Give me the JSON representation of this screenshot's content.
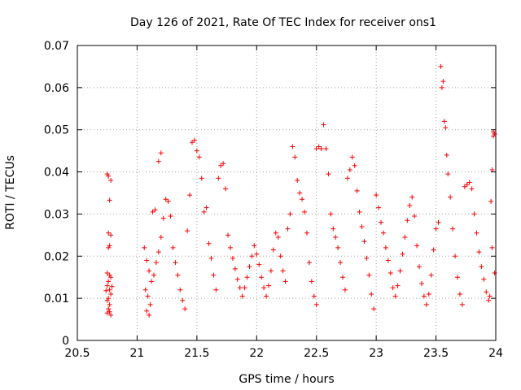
{
  "chart_data": {
    "type": "scatter",
    "title": "Day 126 of 2021, Rate Of TEC Index for receiver ons1",
    "xlabel": "GPS time / hours",
    "ylabel": "ROTI / TECUs",
    "xlim": [
      20.5,
      24
    ],
    "ylim": [
      0,
      0.07
    ],
    "grid": true,
    "marker": "+",
    "color": "#ff0000",
    "x_ticks": [
      20.5,
      21,
      21.5,
      22,
      22.5,
      23,
      23.5,
      24
    ],
    "x_tick_labels": [
      "20.5",
      "21",
      "21.5",
      "22",
      "22.5",
      "23",
      "23.5",
      "24"
    ],
    "y_ticks": [
      0,
      0.01,
      0.02,
      0.03,
      0.04,
      0.05,
      0.06,
      0.07
    ],
    "y_tick_labels": [
      "0",
      "0.01",
      "0.02",
      "0.03",
      "0.04",
      "0.05",
      "0.06",
      "0.07"
    ],
    "series": [
      {
        "name": "ROTI",
        "points": [
          [
            20.75,
            0.0395
          ],
          [
            20.76,
            0.039
          ],
          [
            20.78,
            0.038
          ],
          [
            20.77,
            0.0333
          ],
          [
            20.76,
            0.0255
          ],
          [
            20.78,
            0.025
          ],
          [
            20.77,
            0.0225
          ],
          [
            20.76,
            0.022
          ],
          [
            20.75,
            0.016
          ],
          [
            20.77,
            0.0155
          ],
          [
            20.78,
            0.015
          ],
          [
            20.76,
            0.014
          ],
          [
            20.75,
            0.013
          ],
          [
            20.77,
            0.012
          ],
          [
            20.78,
            0.011
          ],
          [
            20.76,
            0.01
          ],
          [
            20.75,
            0.0095
          ],
          [
            20.77,
            0.0085
          ],
          [
            20.76,
            0.0075
          ],
          [
            20.75,
            0.0065
          ],
          [
            20.78,
            0.006
          ],
          [
            20.77,
            0.0068
          ],
          [
            20.79,
            0.0128
          ],
          [
            20.74,
            0.0118
          ],
          [
            21.06,
            0.022
          ],
          [
            21.08,
            0.019
          ],
          [
            21.1,
            0.0165
          ],
          [
            21.12,
            0.014
          ],
          [
            21.07,
            0.012
          ],
          [
            21.09,
            0.0105
          ],
          [
            21.11,
            0.0085
          ],
          [
            21.08,
            0.007
          ],
          [
            21.1,
            0.006
          ],
          [
            21.14,
            0.0155
          ],
          [
            21.16,
            0.0185
          ],
          [
            21.18,
            0.021
          ],
          [
            21.2,
            0.0245
          ],
          [
            21.22,
            0.029
          ],
          [
            21.18,
            0.0425
          ],
          [
            21.2,
            0.0445
          ],
          [
            21.15,
            0.031
          ],
          [
            21.13,
            0.0305
          ],
          [
            21.24,
            0.0335
          ],
          [
            21.26,
            0.033
          ],
          [
            21.28,
            0.0295
          ],
          [
            21.3,
            0.022
          ],
          [
            21.32,
            0.0185
          ],
          [
            21.34,
            0.0155
          ],
          [
            21.36,
            0.012
          ],
          [
            21.38,
            0.0095
          ],
          [
            21.4,
            0.0075
          ],
          [
            21.42,
            0.026
          ],
          [
            21.44,
            0.0345
          ],
          [
            21.46,
            0.047
          ],
          [
            21.48,
            0.0475
          ],
          [
            21.5,
            0.045
          ],
          [
            21.52,
            0.0435
          ],
          [
            21.54,
            0.0385
          ],
          [
            21.56,
            0.0305
          ],
          [
            21.58,
            0.0315
          ],
          [
            21.6,
            0.023
          ],
          [
            21.62,
            0.0195
          ],
          [
            21.64,
            0.0155
          ],
          [
            21.66,
            0.012
          ],
          [
            21.68,
            0.0385
          ],
          [
            21.7,
            0.0415
          ],
          [
            21.72,
            0.042
          ],
          [
            21.74,
            0.036
          ],
          [
            21.76,
            0.025
          ],
          [
            21.78,
            0.022
          ],
          [
            21.8,
            0.0195
          ],
          [
            21.82,
            0.017
          ],
          [
            21.84,
            0.0145
          ],
          [
            21.86,
            0.0125
          ],
          [
            21.88,
            0.0105
          ],
          [
            21.9,
            0.0125
          ],
          [
            21.92,
            0.015
          ],
          [
            21.94,
            0.0175
          ],
          [
            21.96,
            0.02
          ],
          [
            21.98,
            0.0225
          ],
          [
            22.0,
            0.0205
          ],
          [
            22.02,
            0.018
          ],
          [
            22.04,
            0.015
          ],
          [
            22.06,
            0.0125
          ],
          [
            22.08,
            0.0105
          ],
          [
            22.1,
            0.013
          ],
          [
            22.12,
            0.0165
          ],
          [
            22.14,
            0.0215
          ],
          [
            22.16,
            0.0255
          ],
          [
            22.18,
            0.0245
          ],
          [
            22.2,
            0.02
          ],
          [
            22.22,
            0.0165
          ],
          [
            22.24,
            0.014
          ],
          [
            22.26,
            0.0265
          ],
          [
            22.28,
            0.03
          ],
          [
            22.3,
            0.046
          ],
          [
            22.32,
            0.0435
          ],
          [
            22.34,
            0.038
          ],
          [
            22.36,
            0.035
          ],
          [
            22.38,
            0.0335
          ],
          [
            22.4,
            0.0305
          ],
          [
            22.42,
            0.0255
          ],
          [
            22.44,
            0.0185
          ],
          [
            22.46,
            0.014
          ],
          [
            22.48,
            0.0105
          ],
          [
            22.5,
            0.0085
          ],
          [
            22.5,
            0.0455
          ],
          [
            22.52,
            0.046
          ],
          [
            22.54,
            0.0455
          ],
          [
            22.56,
            0.0512
          ],
          [
            22.58,
            0.0455
          ],
          [
            22.6,
            0.0395
          ],
          [
            22.62,
            0.03
          ],
          [
            22.64,
            0.0265
          ],
          [
            22.66,
            0.0245
          ],
          [
            22.68,
            0.022
          ],
          [
            22.7,
            0.0185
          ],
          [
            22.72,
            0.015
          ],
          [
            22.74,
            0.012
          ],
          [
            22.76,
            0.0385
          ],
          [
            22.78,
            0.0405
          ],
          [
            22.8,
            0.0435
          ],
          [
            22.82,
            0.0415
          ],
          [
            22.84,
            0.0355
          ],
          [
            22.86,
            0.0305
          ],
          [
            22.88,
            0.027
          ],
          [
            22.9,
            0.0235
          ],
          [
            22.92,
            0.0195
          ],
          [
            22.94,
            0.0155
          ],
          [
            22.96,
            0.011
          ],
          [
            22.98,
            0.0075
          ],
          [
            23.0,
            0.0345
          ],
          [
            23.02,
            0.0315
          ],
          [
            23.04,
            0.028
          ],
          [
            23.06,
            0.0255
          ],
          [
            23.08,
            0.022
          ],
          [
            23.1,
            0.019
          ],
          [
            23.12,
            0.016
          ],
          [
            23.14,
            0.0125
          ],
          [
            23.16,
            0.0105
          ],
          [
            23.18,
            0.013
          ],
          [
            23.2,
            0.0165
          ],
          [
            23.22,
            0.0205
          ],
          [
            23.24,
            0.0245
          ],
          [
            23.26,
            0.0285
          ],
          [
            23.28,
            0.032
          ],
          [
            23.3,
            0.034
          ],
          [
            23.32,
            0.0295
          ],
          [
            23.34,
            0.0225
          ],
          [
            23.36,
            0.0175
          ],
          [
            23.38,
            0.0135
          ],
          [
            23.4,
            0.0105
          ],
          [
            23.42,
            0.0085
          ],
          [
            23.44,
            0.011
          ],
          [
            23.46,
            0.0155
          ],
          [
            23.48,
            0.0215
          ],
          [
            23.5,
            0.0265
          ],
          [
            23.52,
            0.028
          ],
          [
            23.54,
            0.065
          ],
          [
            23.55,
            0.06
          ],
          [
            23.56,
            0.0615
          ],
          [
            23.57,
            0.052
          ],
          [
            23.58,
            0.0505
          ],
          [
            23.59,
            0.044
          ],
          [
            23.6,
            0.0395
          ],
          [
            23.62,
            0.034
          ],
          [
            23.64,
            0.0265
          ],
          [
            23.66,
            0.02
          ],
          [
            23.68,
            0.015
          ],
          [
            23.7,
            0.011
          ],
          [
            23.72,
            0.0085
          ],
          [
            23.74,
            0.0365
          ],
          [
            23.76,
            0.037
          ],
          [
            23.78,
            0.0375
          ],
          [
            23.8,
            0.036
          ],
          [
            23.82,
            0.03
          ],
          [
            23.84,
            0.0255
          ],
          [
            23.86,
            0.021
          ],
          [
            23.88,
            0.0175
          ],
          [
            23.9,
            0.0145
          ],
          [
            23.92,
            0.0115
          ],
          [
            23.94,
            0.0095
          ],
          [
            23.96,
            0.033
          ],
          [
            23.97,
            0.0405
          ],
          [
            23.98,
            0.0495
          ],
          [
            23.99,
            0.049
          ],
          [
            23.98,
            0.0485
          ],
          [
            23.97,
            0.022
          ],
          [
            23.99,
            0.016
          ],
          [
            23.95,
            0.0105
          ]
        ]
      }
    ]
  }
}
